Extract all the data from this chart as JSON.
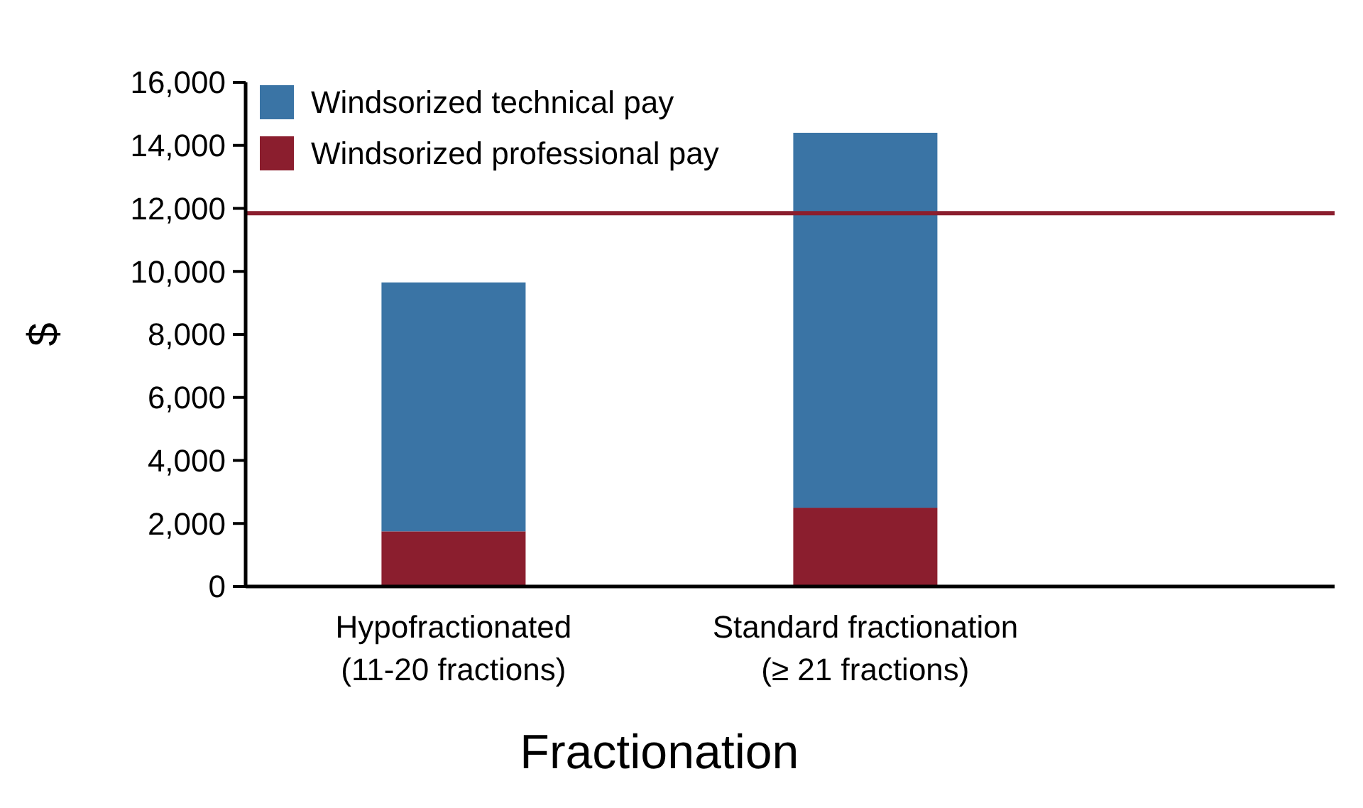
{
  "chart_data": {
    "type": "bar",
    "stacked": true,
    "xlabel": "Fractionation",
    "ylabel": "$",
    "categories": [
      "Hypofractionated\n(11-20 fractions)",
      "Standard fractionation\n(≥ 21 fractions)"
    ],
    "series": [
      {
        "name": "Windsorized professional pay",
        "color": "#8b1e2e",
        "values": [
          1750,
          2500
        ]
      },
      {
        "name": "Windsorized technical pay",
        "color": "#3a74a5",
        "values": [
          7900,
          11900
        ]
      }
    ],
    "ylim": [
      0,
      16000
    ],
    "yticks": [
      {
        "value": 0,
        "label": "0"
      },
      {
        "value": 2000,
        "label": "2,000"
      },
      {
        "value": 4000,
        "label": "4,000"
      },
      {
        "value": 6000,
        "label": "6,000"
      },
      {
        "value": 8000,
        "label": "8,000"
      },
      {
        "value": 10000,
        "label": "10,000"
      },
      {
        "value": 12000,
        "label": "12,000"
      },
      {
        "value": 14000,
        "label": "14,000"
      },
      {
        "value": 16000,
        "label": "16,000"
      }
    ],
    "ref_lines": [
      {
        "axis": "y",
        "value": 11850,
        "color": "#8b1e2e"
      }
    ],
    "legend": "top left",
    "grid": false
  }
}
